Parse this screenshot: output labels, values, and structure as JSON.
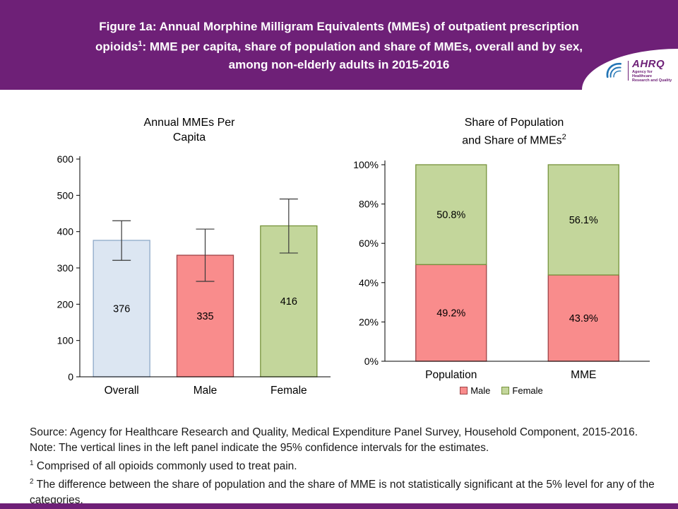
{
  "header": {
    "title_line1": "Figure 1a: Annual Morphine Milligram Equivalents (MMEs) of outpatient prescription",
    "title_line2_pre": "opioids",
    "title_line2_sup": "1",
    "title_line2_post": ": MME per capita, share of population and share of MMEs, overall and by sex,",
    "title_line3": "among non-elderly adults in 2015-2016",
    "logo": {
      "name": "AHRQ",
      "tagline_line1": "Agency for Healthcare",
      "tagline_line2": "Research and Quality"
    }
  },
  "colors": {
    "banner_purple": "#6E2077",
    "logo_blue": "#2274B5",
    "overall_fill": "#DCE6F2",
    "overall_stroke": "#8EA9C9",
    "male_fill": "#F98C8C",
    "male_stroke": "#9E4347",
    "female_fill": "#C3D69B",
    "female_stroke": "#77933C",
    "axis_black": "#000000",
    "error_bar": "#3A3A3A"
  },
  "chart_data": [
    {
      "type": "bar",
      "title": "Annual MMEs Per Capita",
      "title_line1": "Annual MMEs Per",
      "title_line2": "Capita",
      "categories": [
        "Overall",
        "Male",
        "Female"
      ],
      "values": [
        376,
        335,
        416
      ],
      "confidence_intervals_95": [
        [
          321,
          430
        ],
        [
          263,
          407
        ],
        [
          341,
          490
        ]
      ],
      "xlabel": "",
      "ylabel": "",
      "ylim": [
        0,
        600
      ],
      "ytick_step": 100,
      "grid": false
    },
    {
      "type": "stacked-bar",
      "title": "Share of Population and Share of MMEs",
      "title_line1": "Share of Population",
      "title_line2": "and Share of MMEs",
      "title_sup": "2",
      "categories": [
        "Population",
        "MME"
      ],
      "series": [
        {
          "name": "Male",
          "values": [
            49.2,
            43.9
          ],
          "labels": [
            "49.2%",
            "43.9%"
          ]
        },
        {
          "name": "Female",
          "values": [
            50.8,
            56.1
          ],
          "labels": [
            "50.8%",
            "56.1%"
          ]
        }
      ],
      "xlabel": "",
      "ylabel": "",
      "ylim": [
        0,
        100
      ],
      "ytick_step": 20,
      "ytick_suffix": "%",
      "grid": false,
      "legend_position": "bottom"
    }
  ],
  "footer": {
    "source": "Source: Agency for Healthcare Research and Quality, Medical Expenditure Panel Survey, Household Component, 2015-2016.",
    "note": "Note: The vertical lines in the left panel indicate the 95% confidence intervals for the estimates.",
    "footnote1_sup": "1",
    "footnote1_text": " Comprised of all opioids commonly used to treat pain.",
    "footnote2_sup": "2",
    "footnote2_text": " The difference between the share of population and the share of MME is not statistically significant at the 5% level for any of the categories."
  }
}
